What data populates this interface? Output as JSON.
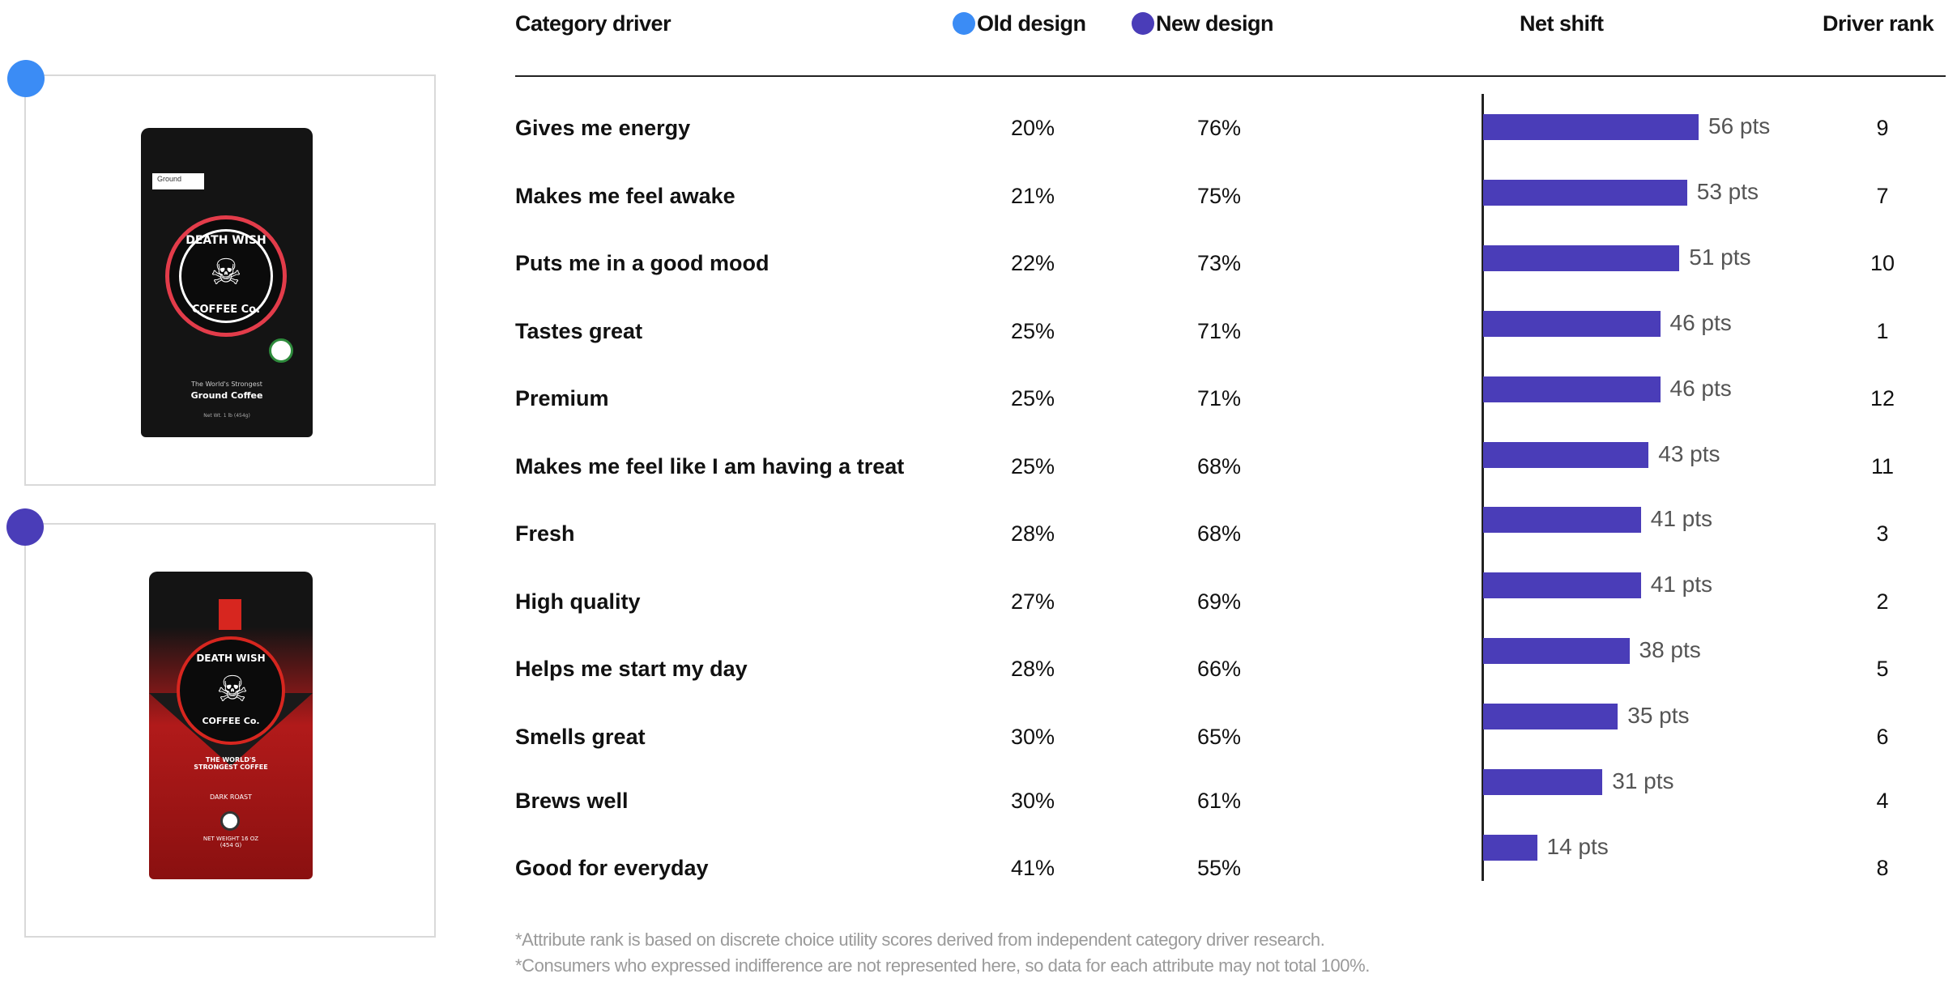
{
  "header": {
    "category_driver": "Category driver",
    "old_design": "Old design",
    "new_design": "New design",
    "net_shift": "Net shift",
    "driver_rank": "Driver rank"
  },
  "colors": {
    "old_design": "#3b8cf5",
    "new_design": "#4a3db8",
    "bar": "#4a3db8"
  },
  "products": {
    "old": {
      "strip": "Ground",
      "brand_top": "DEATH WISH",
      "brand_bottom": "COFFEE Co.",
      "tagline": "The World's Strongest",
      "product": "Ground Coffee",
      "weight": "Net Wt. 1 lb (454g)"
    },
    "new": {
      "brand_top": "DEATH WISH",
      "brand_bottom": "COFFEE Co.",
      "tagline": "THE WORLD'S STRONGEST COFFEE",
      "roast": "DARK ROAST",
      "weight": "NET WEIGHT 16 OZ (454 G)"
    }
  },
  "chart_data": {
    "type": "bar",
    "orientation": "horizontal",
    "unit": "pts",
    "categories": [
      "Gives me energy",
      "Makes me feel awake",
      "Puts me in a good mood",
      "Tastes great",
      "Premium",
      "Makes me feel like I am having a treat",
      "Fresh",
      "High quality",
      "Helps me start my day",
      "Smells great",
      "Brews well",
      "Good for everyday"
    ],
    "old_design": [
      "20%",
      "21%",
      "22%",
      "25%",
      "25%",
      "25%",
      "28%",
      "27%",
      "28%",
      "30%",
      "30%",
      "41%"
    ],
    "new_design": [
      "76%",
      "75%",
      "73%",
      "71%",
      "71%",
      "68%",
      "68%",
      "69%",
      "66%",
      "65%",
      "61%",
      "55%"
    ],
    "net_shift": [
      56,
      53,
      51,
      46,
      46,
      43,
      41,
      41,
      38,
      35,
      31,
      14
    ],
    "net_shift_labels": [
      "56 pts",
      "53 pts",
      "51 pts",
      "46 pts",
      "46 pts",
      "43 pts",
      "41 pts",
      "41 pts",
      "38 pts",
      "35 pts",
      "31 pts",
      "14 pts"
    ],
    "driver_rank": [
      "9",
      "7",
      "10",
      "1",
      "12",
      "11",
      "3",
      "2",
      "5",
      "6",
      "4",
      "8"
    ],
    "xlim": [
      0,
      56
    ],
    "grid": false
  },
  "footnotes": [
    "*Attribute rank is based on discrete choice utility scores derived from independent category driver research.",
    "*Consumers who expressed indifference are not represented here, so data for each attribute may not total 100%."
  ]
}
